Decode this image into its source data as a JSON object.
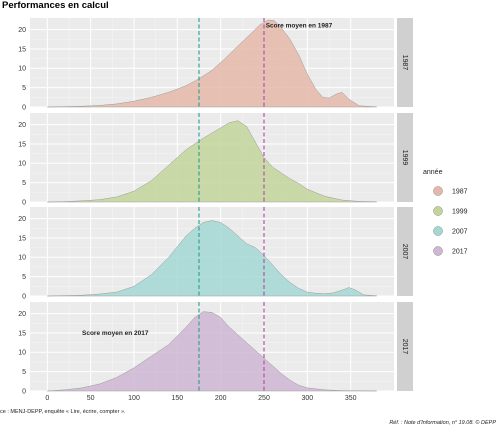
{
  "chart_data": {
    "type": "area",
    "title": "Performances en calcul",
    "xlabel": "",
    "ylabel": "",
    "xlim": [
      -20,
      400
    ],
    "ylim": [
      0,
      23
    ],
    "x_ticks": [
      0,
      50,
      100,
      150,
      200,
      250,
      300,
      350
    ],
    "y_ticks": [
      0,
      5,
      10,
      15,
      20
    ],
    "reference_lines": [
      {
        "x": 175,
        "color": "#2a9d8f",
        "style": "dashed"
      },
      {
        "x": 250,
        "color": "#b04aa0",
        "style": "dashed"
      }
    ],
    "annotations": [
      {
        "panel": "1987",
        "text": "Score moyen en 1987",
        "x": 252,
        "y": 20.5
      },
      {
        "panel": "2017",
        "text": "Score moyen en 2017",
        "x": 40,
        "y": 14.5
      }
    ],
    "legend": {
      "title": "année",
      "position": "right"
    },
    "series": [
      {
        "name": "1987",
        "color": "#e5b8a9",
        "x": [
          0,
          20,
          40,
          60,
          80,
          100,
          120,
          140,
          160,
          175,
          190,
          205,
          220,
          235,
          245,
          255,
          262,
          270,
          280,
          290,
          300,
          310,
          318,
          325,
          333,
          340,
          348,
          360,
          380
        ],
        "y": [
          0,
          0.1,
          0.2,
          0.4,
          0.8,
          1.5,
          2.5,
          3.8,
          5.5,
          7.3,
          9.5,
          12.5,
          15.8,
          19.0,
          21.2,
          22.5,
          22.3,
          20.5,
          17.5,
          13.5,
          8.5,
          4.5,
          2.5,
          2.3,
          3.3,
          3.8,
          2.0,
          0.3,
          0.05
        ]
      },
      {
        "name": "1999",
        "color": "#c3d59b",
        "x": [
          0,
          20,
          40,
          60,
          80,
          100,
          120,
          140,
          160,
          180,
          195,
          210,
          220,
          230,
          240,
          250,
          260,
          270,
          280,
          290,
          300,
          320,
          340,
          360,
          380
        ],
        "y": [
          0,
          0.1,
          0.3,
          0.6,
          1.3,
          2.8,
          5.5,
          9.5,
          13.5,
          16.5,
          18.5,
          20.5,
          21.0,
          19.5,
          15.5,
          11.5,
          9.0,
          7.5,
          6.0,
          4.8,
          3.3,
          1.5,
          0.5,
          0.15,
          0.05
        ]
      },
      {
        "name": "2007",
        "color": "#a3d8d3",
        "x": [
          0,
          20,
          40,
          60,
          80,
          100,
          120,
          140,
          160,
          170,
          180,
          190,
          200,
          210,
          220,
          230,
          240,
          250,
          260,
          270,
          280,
          290,
          300,
          310,
          320,
          330,
          340,
          348,
          355,
          365,
          380
        ],
        "y": [
          0,
          0.1,
          0.2,
          0.5,
          1.0,
          2.5,
          5.5,
          10.0,
          15.5,
          17.5,
          19.0,
          19.5,
          19.0,
          17.5,
          15.5,
          13.5,
          12.5,
          10.5,
          8.0,
          5.5,
          3.5,
          2.0,
          1.0,
          0.7,
          0.6,
          0.8,
          1.5,
          2.2,
          1.6,
          0.3,
          0.05
        ]
      },
      {
        "name": "2017",
        "color": "#cfb6d4",
        "x": [
          0,
          20,
          40,
          60,
          80,
          100,
          120,
          140,
          160,
          170,
          180,
          190,
          200,
          210,
          220,
          230,
          240,
          250,
          260,
          270,
          280,
          290,
          300,
          320,
          340,
          360,
          380
        ],
        "y": [
          0,
          0.3,
          0.8,
          1.8,
          3.5,
          6.0,
          9.0,
          12.0,
          16.5,
          19.0,
          20.5,
          20.3,
          19.0,
          16.5,
          14.5,
          12.5,
          10.5,
          8.5,
          6.5,
          4.5,
          2.8,
          1.5,
          0.8,
          0.3,
          0.1,
          0.05,
          0.02
        ]
      }
    ]
  },
  "footer": {
    "source": "ce : MENJ-DEPP, enquête « Lire, écrire, compter ».",
    "reference": "Réf. : Note d'Information, n° 19.08. © DEPP"
  }
}
